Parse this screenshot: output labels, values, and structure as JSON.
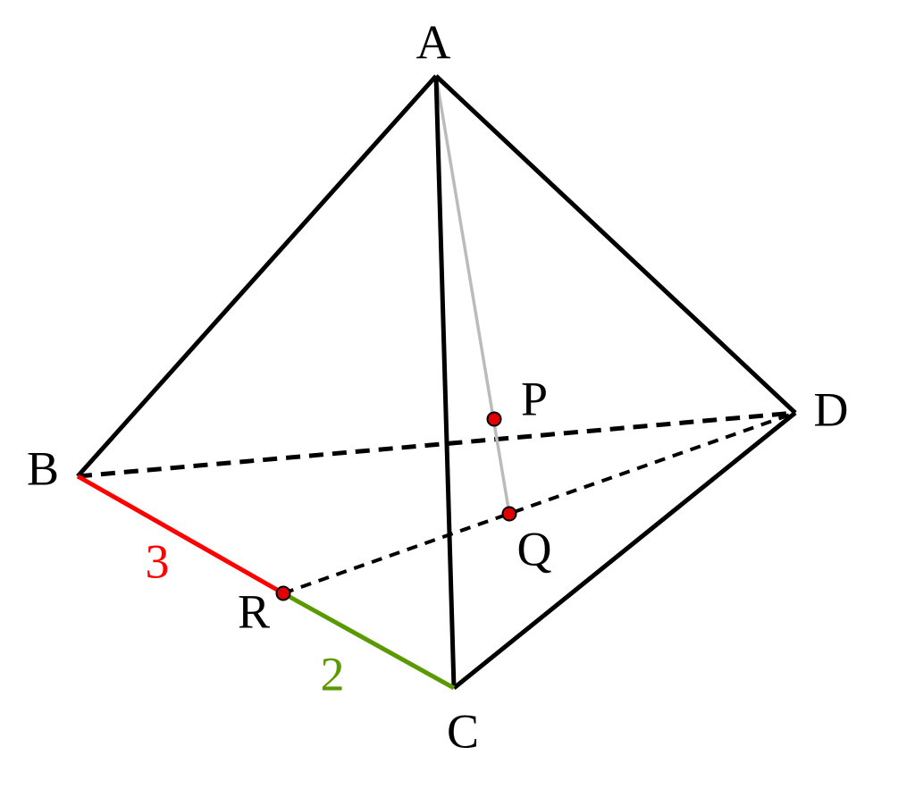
{
  "nodes": [
    {
      "label": "A"
    },
    {
      "label": "B"
    },
    {
      "label": "C"
    },
    {
      "label": "D"
    },
    {
      "label": "P"
    },
    {
      "label": "Q"
    },
    {
      "label": "R"
    }
  ],
  "segments": [
    {
      "label": "3"
    },
    {
      "label": "2"
    }
  ]
}
